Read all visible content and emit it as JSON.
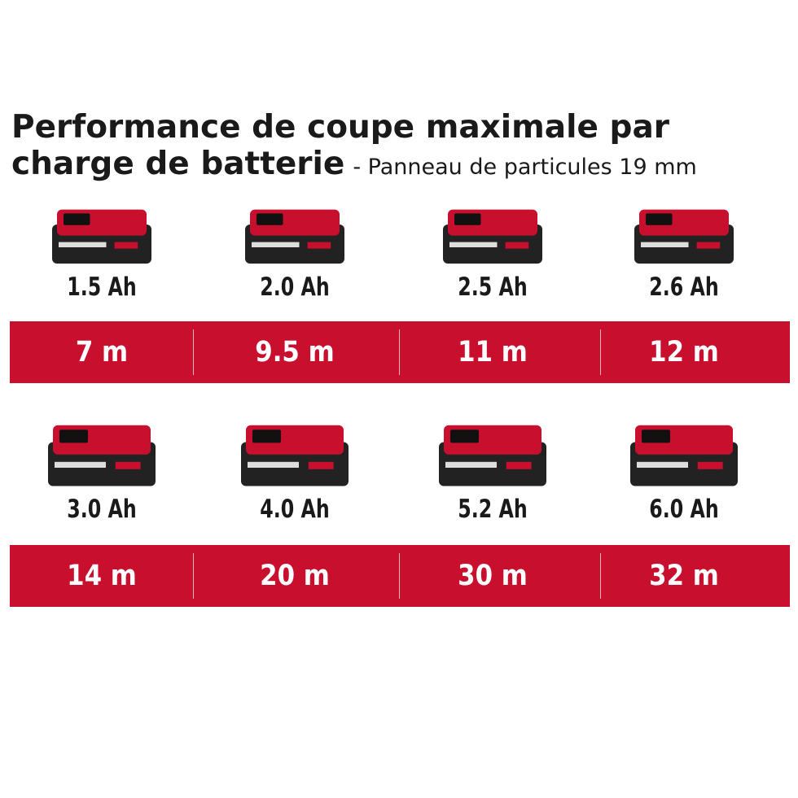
{
  "title_lines": [
    "Performance de coupe maximale par",
    "charge de batterie"
  ],
  "subtitle": "- Panneau de particules 19 mm",
  "rows": [
    {
      "items": [
        {
          "capacity": "1.5 Ah",
          "result": "7 m"
        },
        {
          "capacity": "2.0 Ah",
          "result": "9.5 m"
        },
        {
          "capacity": "2.5 Ah",
          "result": "11 m"
        },
        {
          "capacity": "2.6 Ah",
          "result": "12 m"
        }
      ]
    },
    {
      "items": [
        {
          "capacity": "3.0 Ah",
          "result": "14 m"
        },
        {
          "capacity": "4.0 Ah",
          "result": "20 m"
        },
        {
          "capacity": "5.2 Ah",
          "result": "30 m"
        },
        {
          "capacity": "6.0 Ah",
          "result": "32 m"
        }
      ]
    }
  ]
}
